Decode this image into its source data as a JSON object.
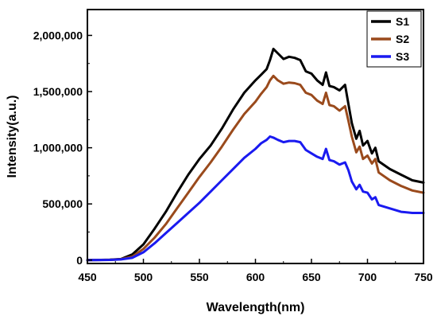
{
  "chart_data": {
    "type": "line",
    "title": "",
    "xlabel": "Wavelength(nm)",
    "ylabel": "Intensity(a.u.)",
    "xlim": [
      450,
      750
    ],
    "ylim": [
      -30000,
      2230000
    ],
    "x_ticks": [
      450,
      500,
      550,
      600,
      650,
      700,
      750
    ],
    "x_tick_labels": [
      "450",
      "500",
      "550",
      "600",
      "650",
      "700",
      "750"
    ],
    "y_ticks": [
      0,
      500000,
      1000000,
      1500000,
      2000000
    ],
    "y_tick_labels": [
      "0",
      "500,000",
      "1,000,000",
      "1,500,000",
      "2,000,000"
    ],
    "grid": false,
    "legend_position": "top-right",
    "series": [
      {
        "name": "S1",
        "color": "#000000",
        "x": [
          450,
          470,
          480,
          490,
          500,
          510,
          520,
          530,
          540,
          550,
          560,
          570,
          580,
          590,
          600,
          605,
          610,
          613,
          616,
          620,
          625,
          630,
          635,
          640,
          645,
          650,
          655,
          660,
          663,
          666,
          670,
          675,
          680,
          683,
          686,
          690,
          693,
          696,
          700,
          704,
          707,
          710,
          720,
          730,
          740,
          750
        ],
        "y": [
          0,
          3000,
          10000,
          50000,
          140000,
          280000,
          430000,
          600000,
          760000,
          900000,
          1020000,
          1170000,
          1340000,
          1490000,
          1600000,
          1650000,
          1700000,
          1780000,
          1880000,
          1840000,
          1790000,
          1810000,
          1800000,
          1780000,
          1680000,
          1660000,
          1600000,
          1560000,
          1670000,
          1550000,
          1540000,
          1510000,
          1560000,
          1390000,
          1220000,
          1080000,
          1150000,
          1020000,
          1060000,
          950000,
          1000000,
          880000,
          810000,
          760000,
          710000,
          690000
        ]
      },
      {
        "name": "S2",
        "color": "#9a4a1c",
        "x": [
          450,
          470,
          480,
          490,
          500,
          510,
          520,
          530,
          540,
          550,
          560,
          570,
          580,
          590,
          600,
          605,
          610,
          613,
          616,
          620,
          625,
          630,
          635,
          640,
          645,
          650,
          655,
          660,
          663,
          666,
          670,
          675,
          680,
          683,
          686,
          690,
          693,
          696,
          700,
          704,
          707,
          710,
          720,
          730,
          740,
          750
        ],
        "y": [
          0,
          2000,
          8000,
          30000,
          100000,
          200000,
          320000,
          460000,
          600000,
          740000,
          870000,
          1010000,
          1160000,
          1300000,
          1410000,
          1480000,
          1540000,
          1600000,
          1640000,
          1600000,
          1570000,
          1580000,
          1575000,
          1560000,
          1490000,
          1470000,
          1420000,
          1390000,
          1490000,
          1380000,
          1370000,
          1330000,
          1370000,
          1240000,
          1100000,
          960000,
          1010000,
          900000,
          930000,
          860000,
          900000,
          780000,
          710000,
          660000,
          620000,
          600000
        ]
      },
      {
        "name": "S3",
        "color": "#1a1af0",
        "x": [
          450,
          470,
          480,
          490,
          500,
          510,
          520,
          530,
          540,
          550,
          560,
          570,
          580,
          590,
          600,
          605,
          610,
          613,
          616,
          620,
          625,
          630,
          635,
          640,
          645,
          650,
          655,
          660,
          663,
          666,
          670,
          675,
          680,
          683,
          686,
          690,
          693,
          696,
          700,
          704,
          707,
          710,
          720,
          730,
          740,
          750
        ],
        "y": [
          0,
          2000,
          6000,
          20000,
          70000,
          150000,
          240000,
          330000,
          420000,
          510000,
          610000,
          710000,
          810000,
          910000,
          990000,
          1040000,
          1070000,
          1100000,
          1090000,
          1070000,
          1050000,
          1060000,
          1060000,
          1050000,
          980000,
          950000,
          920000,
          900000,
          990000,
          890000,
          880000,
          850000,
          870000,
          800000,
          700000,
          630000,
          670000,
          610000,
          600000,
          540000,
          560000,
          490000,
          460000,
          430000,
          420000,
          420000
        ]
      }
    ]
  }
}
